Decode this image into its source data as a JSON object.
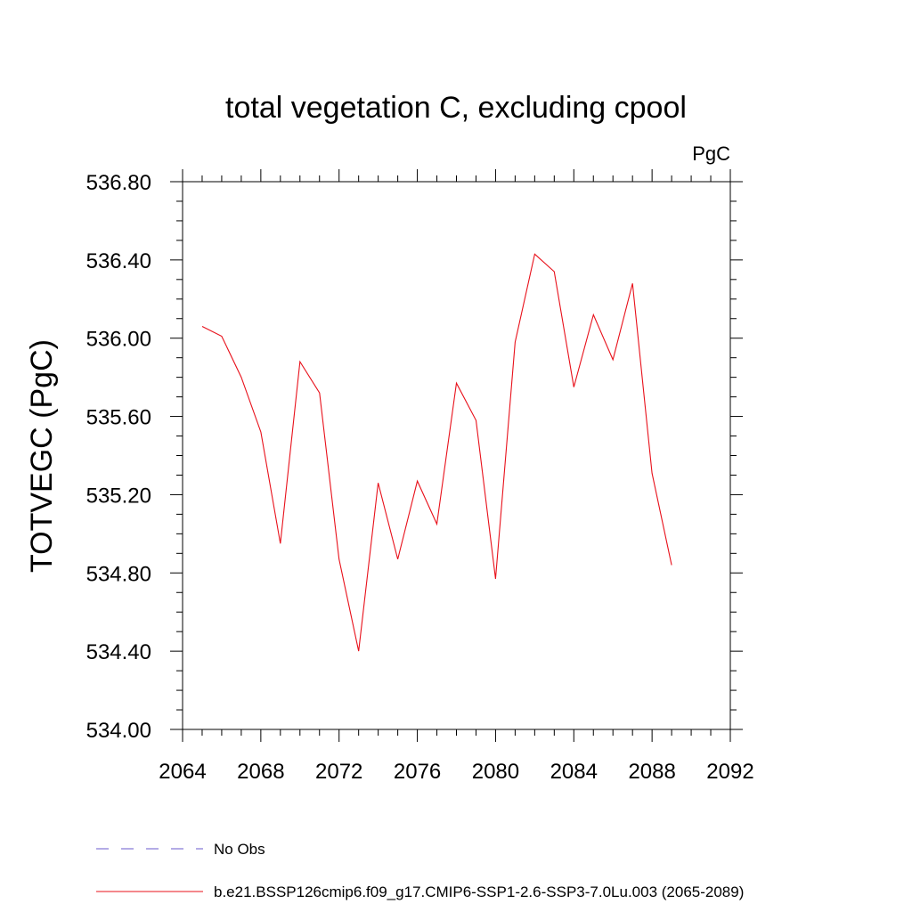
{
  "chart_data": {
    "type": "line",
    "title": "total vegetation C, excluding cpool",
    "units": "PgC",
    "ylabel": "TOTVEGC  (PgC)",
    "xlabel": "",
    "xlim": [
      2064,
      2092
    ],
    "ylim": [
      534.0,
      536.8
    ],
    "xticks": [
      2064,
      2068,
      2072,
      2076,
      2080,
      2084,
      2088,
      2092
    ],
    "xtick_labels": [
      "2064",
      "2068",
      "2072",
      "2076",
      "2080",
      "2084",
      "2088",
      "2092"
    ],
    "yticks": [
      534.0,
      534.4,
      534.8,
      535.2,
      535.6,
      536.0,
      536.4,
      536.8
    ],
    "ytick_labels": [
      "534.00",
      "534.40",
      "534.80",
      "535.20",
      "535.60",
      "536.00",
      "536.40",
      "536.80"
    ],
    "grid": false,
    "legend_position": "bottom",
    "series": [
      {
        "name": "b.e21.BSSP126cmip6.f09_g17.CMIP6-SSP1-2.6-SSP3-7.0Lu.003 (2065-2089)",
        "color": "#e8101a",
        "x": [
          2065,
          2066,
          2067,
          2068,
          2069,
          2070,
          2071,
          2072,
          2073,
          2074,
          2075,
          2076,
          2077,
          2078,
          2079,
          2080,
          2081,
          2082,
          2083,
          2084,
          2085,
          2086,
          2087,
          2088,
          2089
        ],
        "y": [
          536.06,
          536.01,
          535.8,
          535.52,
          534.95,
          535.88,
          535.72,
          534.87,
          534.4,
          535.26,
          534.87,
          535.27,
          535.05,
          535.77,
          535.58,
          534.77,
          535.98,
          536.43,
          536.34,
          535.75,
          536.12,
          535.89,
          536.28,
          535.31,
          534.84
        ]
      }
    ],
    "legend": [
      {
        "label": "No Obs",
        "color": "#6a5acd",
        "style": "dashed"
      },
      {
        "label": "b.e21.BSSP126cmip6.f09_g17.CMIP6-SSP1-2.6-SSP3-7.0Lu.003 (2065-2089)",
        "color": "#e8101a",
        "style": "solid"
      }
    ]
  }
}
